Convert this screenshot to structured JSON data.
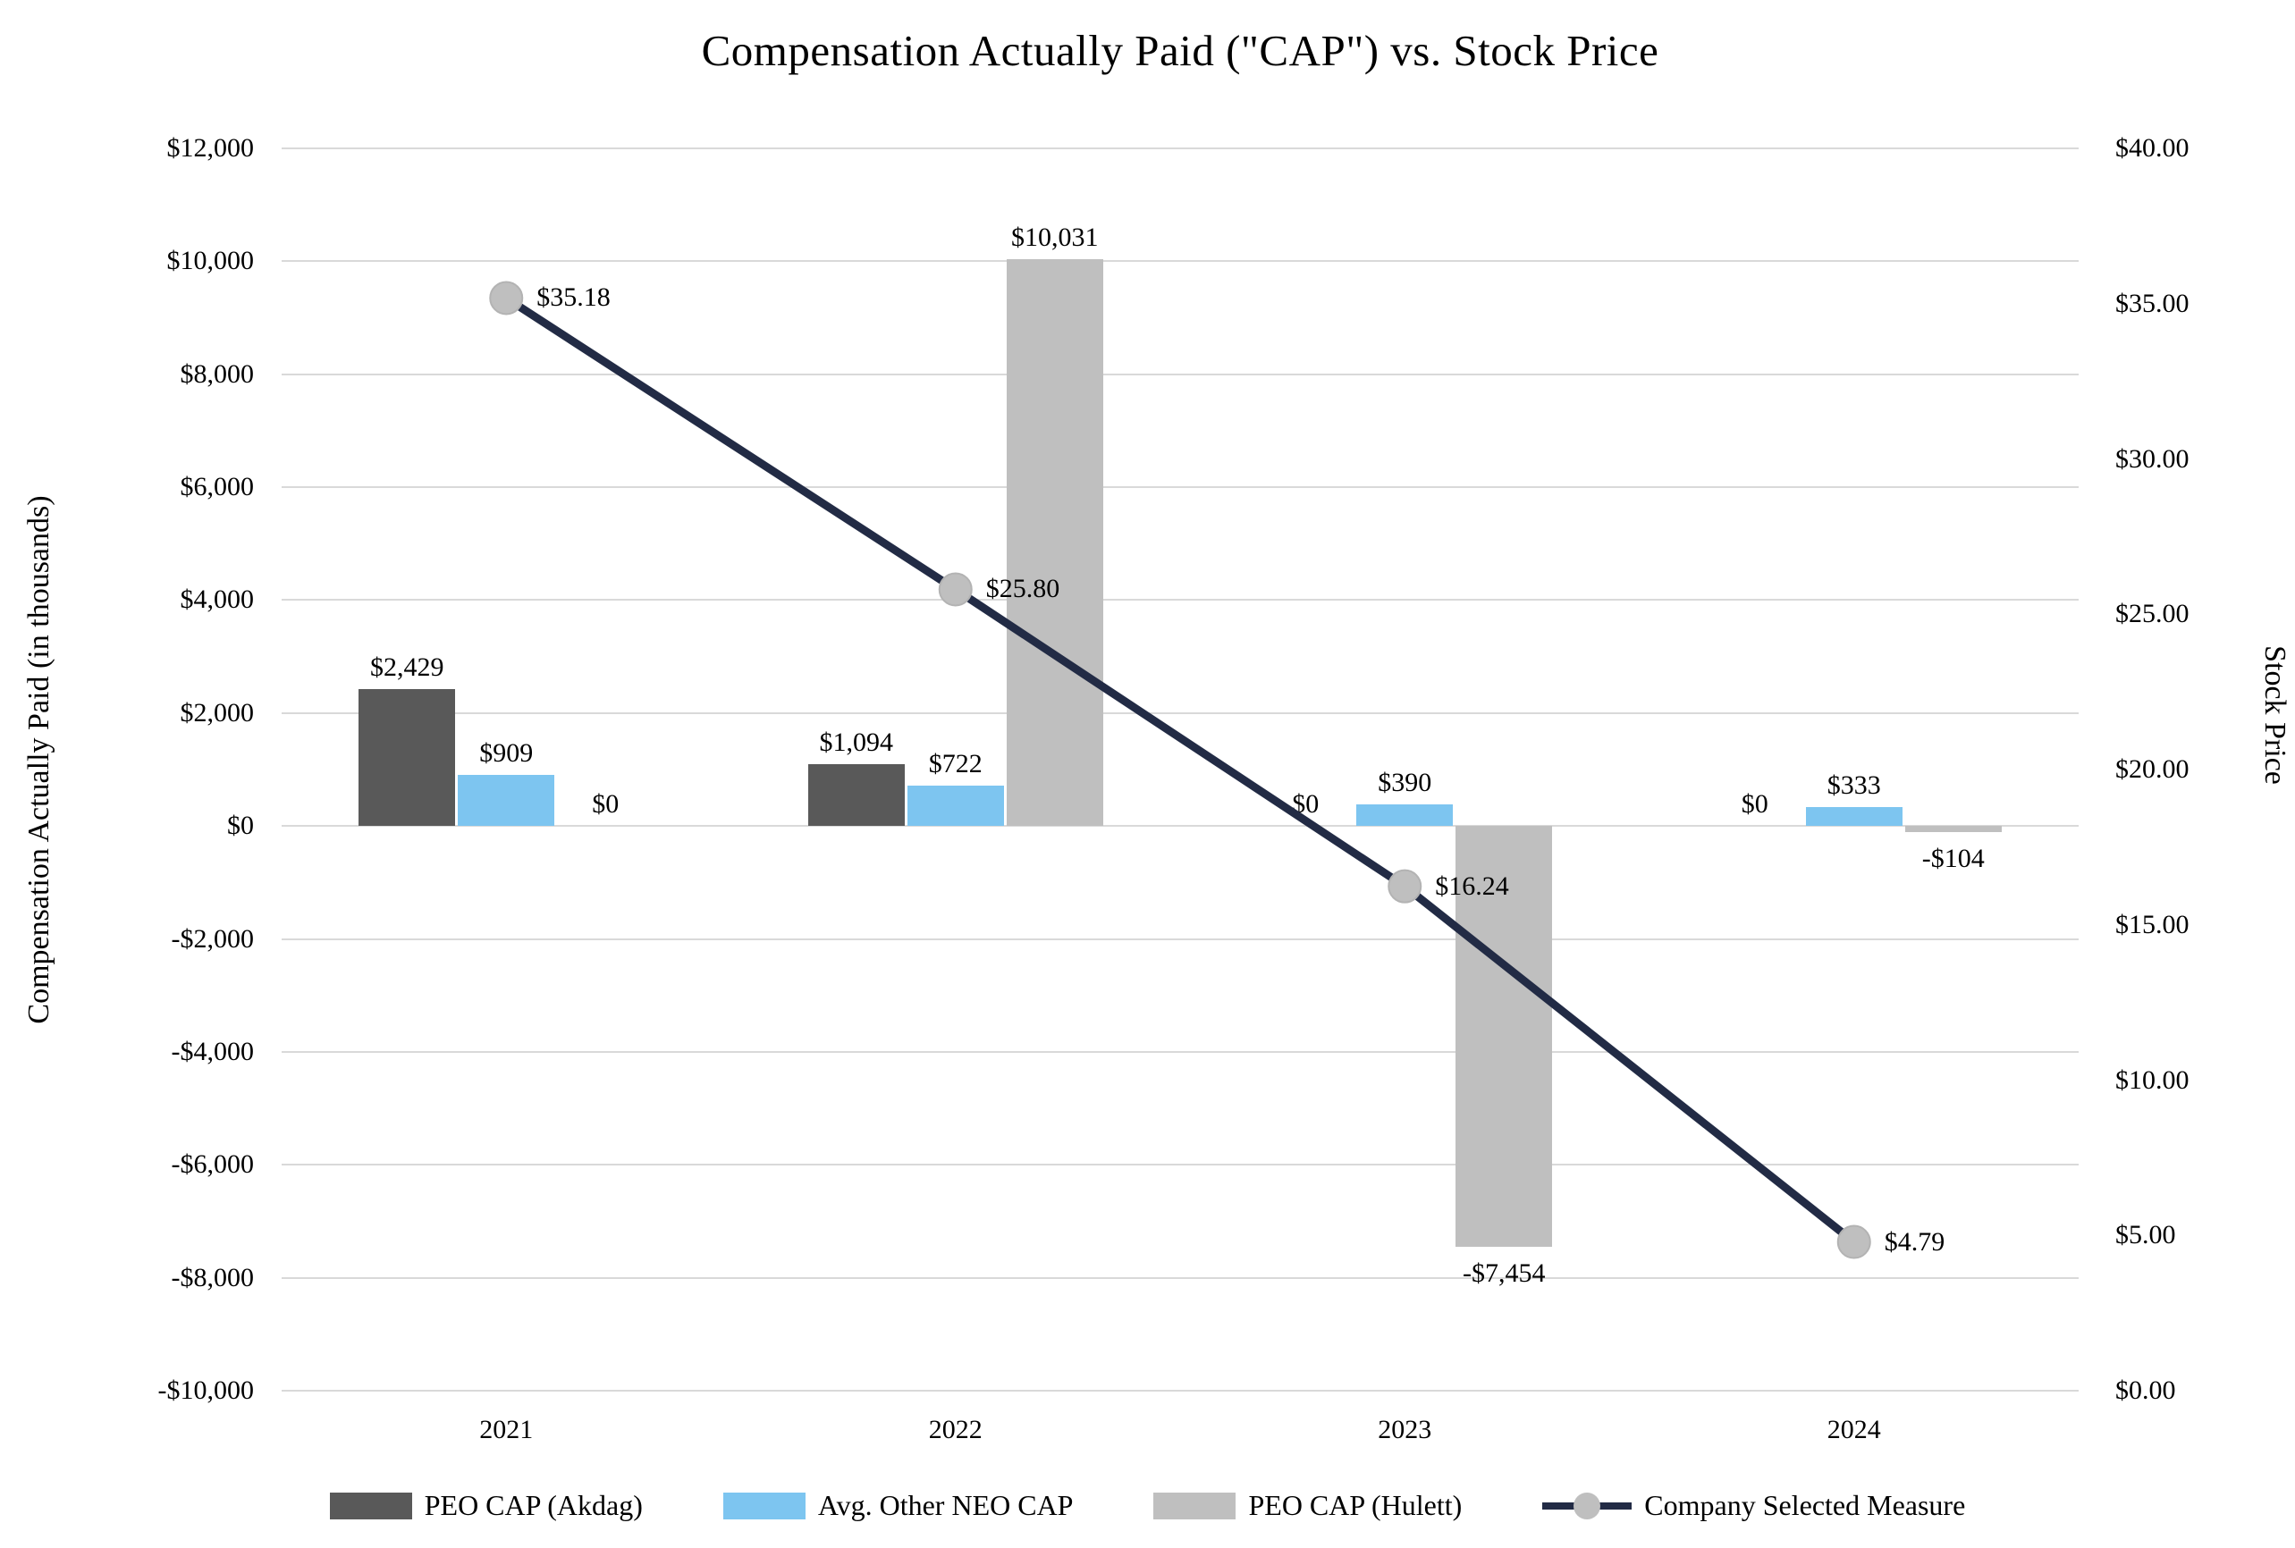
{
  "title": "Compensation Actually Paid (\"CAP\") vs. Stock Price",
  "chart_data": {
    "type": "bar",
    "subtype": "combo-bar-line-dual-axis",
    "title": "Compensation Actually Paid (\"CAP\") vs. Stock Price",
    "categories": [
      "2021",
      "2022",
      "2023",
      "2024"
    ],
    "series": [
      {
        "name": "PEO CAP (Akdag)",
        "kind": "bar",
        "axis": "left",
        "color": "#595959",
        "values": [
          2429,
          1094,
          0,
          0
        ],
        "labels": [
          "$2,429",
          "$1,094",
          "$0",
          "$0"
        ]
      },
      {
        "name": "Avg. Other NEO CAP",
        "kind": "bar",
        "axis": "left",
        "color": "#7DC5F0",
        "values": [
          909,
          722,
          390,
          333
        ],
        "labels": [
          "$909",
          "$722",
          "$390",
          "$333"
        ]
      },
      {
        "name": "PEO CAP (Hulett)",
        "kind": "bar",
        "axis": "left",
        "color": "#BFBFBF",
        "values": [
          0,
          10031,
          -7454,
          -104
        ],
        "labels": [
          "$0",
          "$10,031",
          "-$7,454",
          "-$104"
        ]
      },
      {
        "name": "Company Selected Measure",
        "kind": "line",
        "axis": "right",
        "color": "#222B45",
        "marker_color": "#BFBFBF",
        "values": [
          35.18,
          25.8,
          16.24,
          4.79
        ],
        "labels": [
          "$35.18",
          "$25.80",
          "$16.24",
          "$4.79"
        ]
      }
    ],
    "left_axis": {
      "title": "Compensation Actually Paid (in thousands)",
      "min": -10000,
      "max": 12000,
      "step": 2000,
      "ticks": [
        {
          "value": 12000,
          "label": "$12,000"
        },
        {
          "value": 10000,
          "label": "$10,000"
        },
        {
          "value": 8000,
          "label": "$8,000"
        },
        {
          "value": 6000,
          "label": "$6,000"
        },
        {
          "value": 4000,
          "label": "$4,000"
        },
        {
          "value": 2000,
          "label": "$2,000"
        },
        {
          "value": 0,
          "label": "$0"
        },
        {
          "value": -2000,
          "label": "-$2,000"
        },
        {
          "value": -4000,
          "label": "-$4,000"
        },
        {
          "value": -6000,
          "label": "-$6,000"
        },
        {
          "value": -8000,
          "label": "-$8,000"
        },
        {
          "value": -10000,
          "label": "-$10,000"
        }
      ]
    },
    "right_axis": {
      "title": "Stock Price",
      "min": 0,
      "max": 40,
      "step": 5,
      "ticks": [
        {
          "value": 40,
          "label": "$40.00"
        },
        {
          "value": 35,
          "label": "$35.00"
        },
        {
          "value": 30,
          "label": "$30.00"
        },
        {
          "value": 25,
          "label": "$25.00"
        },
        {
          "value": 20,
          "label": "$20.00"
        },
        {
          "value": 15,
          "label": "$15.00"
        },
        {
          "value": 10,
          "label": "$10.00"
        },
        {
          "value": 5,
          "label": "$5.00"
        },
        {
          "value": 0,
          "label": "$0.00"
        }
      ]
    },
    "legend_position": "bottom",
    "grid": true,
    "colors": {
      "grid": "#D9D9D9",
      "background": "#FFFFFF",
      "text": "#000000"
    }
  }
}
